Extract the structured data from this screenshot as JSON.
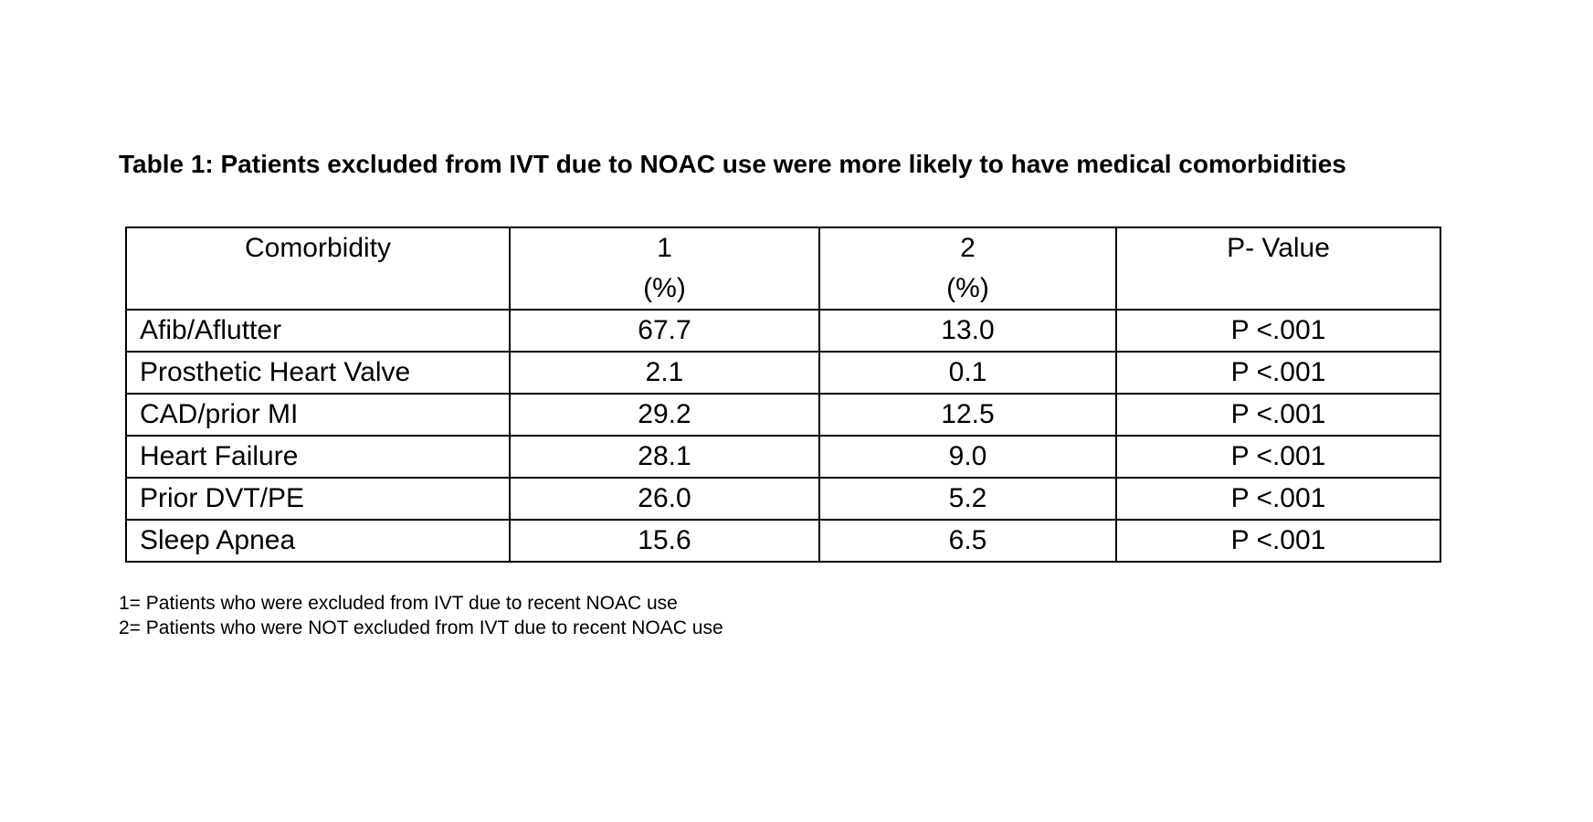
{
  "colors": {
    "background": "#ffffff",
    "text": "#000000",
    "table_border": "#000000"
  },
  "title": "Table 1: Patients excluded from IVT due to NOAC use were more likely to have medical comorbidities",
  "table": {
    "columns": [
      {
        "label": "Comorbidity",
        "sublabel": ""
      },
      {
        "label": "1",
        "sublabel": "(%)"
      },
      {
        "label": "2",
        "sublabel": "(%)"
      },
      {
        "label": "P- Value",
        "sublabel": ""
      }
    ],
    "rows": [
      {
        "comorbidity": "Afib/Aflutter",
        "group1_pct": "67.7",
        "group2_pct": "13.0",
        "p_value": "P <.001"
      },
      {
        "comorbidity": "Prosthetic Heart Valve",
        "group1_pct": "2.1",
        "group2_pct": "0.1",
        "p_value": "P <.001"
      },
      {
        "comorbidity": "CAD/prior MI",
        "group1_pct": "29.2",
        "group2_pct": "12.5",
        "p_value": "P <.001"
      },
      {
        "comorbidity": "Heart Failure",
        "group1_pct": "28.1",
        "group2_pct": "9.0",
        "p_value": "P <.001"
      },
      {
        "comorbidity": "Prior DVT/PE",
        "group1_pct": "26.0",
        "group2_pct": "5.2",
        "p_value": "P <.001"
      },
      {
        "comorbidity": "Sleep Apnea",
        "group1_pct": "15.6",
        "group2_pct": "6.5",
        "p_value": "P <.001"
      }
    ]
  },
  "footnotes": [
    "1= Patients who were excluded from IVT due to recent NOAC use",
    "2= Patients who were NOT excluded from IVT due to recent NOAC use"
  ]
}
